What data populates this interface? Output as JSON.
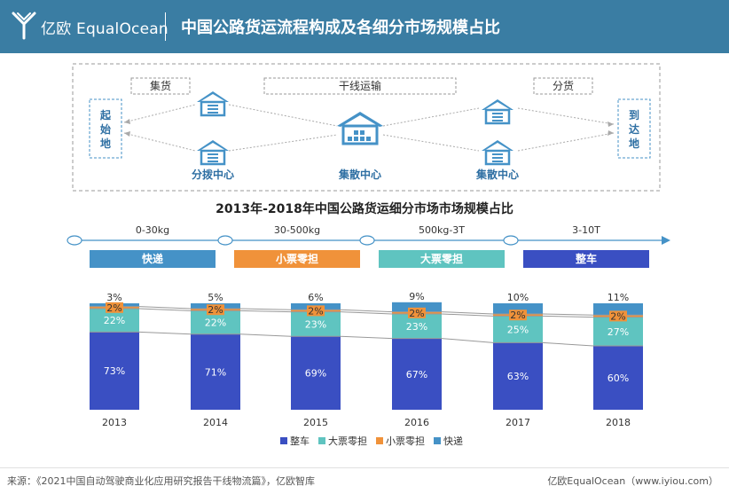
{
  "header": {
    "logo_text": "亿欧 EqualOcean",
    "title": "中国公路货运流程构成及各细分市场规模占比"
  },
  "flow": {
    "stage_labels": [
      "集货",
      "干线运输",
      "分货"
    ],
    "origin": [
      "起",
      "始",
      "地"
    ],
    "destination": [
      "到",
      "达",
      "地"
    ],
    "node_labels": [
      "分拨中心",
      "集散中心",
      "集散中心"
    ]
  },
  "chart_data": {
    "type": "bar",
    "stacked": true,
    "title": "2013年-2018年中国公路货运细分市场市场规模占比",
    "categories": [
      "2013",
      "2014",
      "2015",
      "2016",
      "2017",
      "2018"
    ],
    "series": [
      {
        "name": "整车",
        "values": [
          73,
          71,
          69,
          67,
          63,
          60
        ]
      },
      {
        "name": "大票零担",
        "values": [
          22,
          22,
          23,
          23,
          25,
          27
        ]
      },
      {
        "name": "小票零担",
        "values": [
          2,
          2,
          2,
          2,
          2,
          2
        ]
      },
      {
        "name": "快递",
        "values": [
          3,
          5,
          6,
          9,
          10,
          11
        ]
      }
    ],
    "value_suffix": "%",
    "ylim": [
      0,
      100
    ],
    "legend": "bottom",
    "grid": false,
    "colors": {
      "整车": "#3a4fc2",
      "大票零担": "#5fc4c0",
      "小票零担": "#f0923a",
      "快递": "#4592c7"
    }
  },
  "segments": [
    {
      "range": "0-30kg",
      "label": "快递",
      "color": "#4592c7"
    },
    {
      "range": "30-500kg",
      "label": "小票零担",
      "color": "#f0923a"
    },
    {
      "range": "500kg-3T",
      "label": "大票零担",
      "color": "#5fc4c0"
    },
    {
      "range": "3-10T",
      "label": "整车",
      "color": "#3a4fc2"
    }
  ],
  "footer": {
    "source": "来源：《2021中国自动驾驶商业化应用研究报告干线物流篇》，亿欧智库",
    "brand": "亿欧EqualOcean（www.iyiou.com）"
  }
}
